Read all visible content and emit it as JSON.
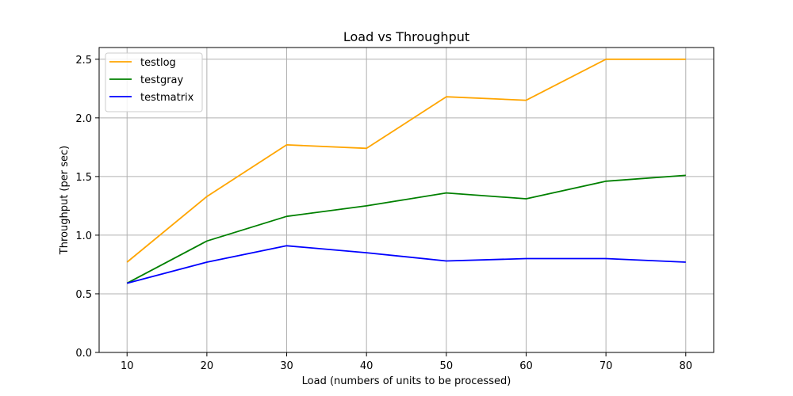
{
  "chart_data": {
    "type": "line",
    "title": "Load vs Throughput",
    "xlabel": "Load (numbers of units to be processed)",
    "ylabel": "Throughput (per sec)",
    "x": [
      10,
      20,
      30,
      40,
      50,
      60,
      70,
      80
    ],
    "xlim": [
      6.5,
      83.5
    ],
    "ylim": [
      0,
      2.6
    ],
    "xticks": [
      "10",
      "20",
      "30",
      "40",
      "50",
      "60",
      "70",
      "80"
    ],
    "yticks": [
      "0.0",
      "0.5",
      "1.0",
      "1.5",
      "2.0",
      "2.5"
    ],
    "grid": true,
    "legend_position": "top-left",
    "series": [
      {
        "name": "testlog",
        "color": "#ffa500",
        "values": [
          0.77,
          1.33,
          1.77,
          1.74,
          2.18,
          2.15,
          2.5,
          2.5
        ]
      },
      {
        "name": "testgray",
        "color": "#008000",
        "values": [
          0.59,
          0.95,
          1.16,
          1.25,
          1.36,
          1.31,
          1.46,
          1.51
        ]
      },
      {
        "name": "testmatrix",
        "color": "#0000ff",
        "values": [
          0.59,
          0.77,
          0.91,
          0.85,
          0.78,
          0.8,
          0.8,
          0.77
        ]
      }
    ]
  }
}
